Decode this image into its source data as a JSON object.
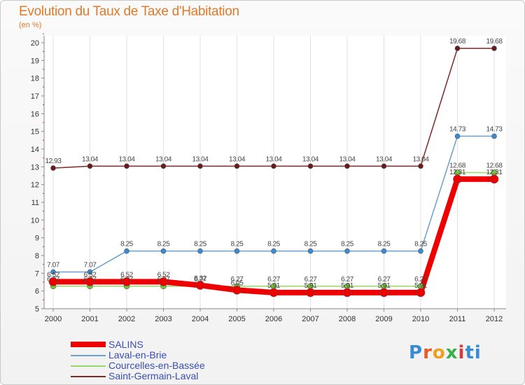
{
  "header": {
    "title": "Evolution du Taux de Taxe d'Habitation",
    "unit": "(en %)"
  },
  "logo": {
    "text": "Proxiti",
    "letters": [
      "P",
      "r",
      "o",
      "x",
      "i",
      "ti"
    ]
  },
  "chart_data": {
    "type": "line",
    "title": "Evolution du Taux de Taxe d'Habitation",
    "ylabel": "(en %)",
    "xlabel": "",
    "ylim": [
      5,
      20
    ],
    "yticks": [
      5,
      6,
      7,
      8,
      9,
      10,
      11,
      12,
      13,
      14,
      15,
      16,
      17,
      18,
      19,
      20
    ],
    "categories": [
      "2000",
      "2001",
      "2002",
      "2003",
      "2004",
      "2005",
      "2006",
      "2007",
      "2008",
      "2009",
      "2010",
      "2011",
      "2012"
    ],
    "grid": "vertical",
    "legend_position": "bottom-left",
    "series": [
      {
        "name": "Saint-Germain-Laval",
        "color": "#7a2a2a",
        "values": [
          12.93,
          13.04,
          13.04,
          13.04,
          13.04,
          13.04,
          13.04,
          13.04,
          13.04,
          13.04,
          13.04,
          19.68,
          19.68
        ],
        "labels": [
          "12.93",
          "13.04",
          "13.04",
          "13.04",
          "13.04",
          "13.04",
          "13.04",
          "13.04",
          "13.04",
          "13.04",
          "13.04",
          "19.68",
          "19.68"
        ]
      },
      {
        "name": "Laval-en-Brie",
        "color": "#6aa0cc",
        "values": [
          7.07,
          7.07,
          8.25,
          8.25,
          8.25,
          8.25,
          8.25,
          8.25,
          8.25,
          8.25,
          8.25,
          14.73,
          14.73
        ],
        "labels": [
          "7.07",
          "7.07",
          "8.25",
          "8.25",
          "8.25",
          "8.25",
          "8.25",
          "8.25",
          "8.25",
          "8.25",
          "8.25",
          "14.73",
          "14.73"
        ]
      },
      {
        "name": "Courcelles-en-Bassée",
        "color": "#98d868",
        "values": [
          6.27,
          6.27,
          6.27,
          6.27,
          6.27,
          6.27,
          6.27,
          6.27,
          6.27,
          6.27,
          6.27,
          12.68,
          12.68
        ],
        "labels": [
          "6.27",
          "6.27",
          "6.27",
          "6.27",
          "6.27",
          "6.27",
          "6.27",
          "6.27",
          "6.27",
          "6.27",
          "6.27",
          "12.68",
          "12.68"
        ]
      },
      {
        "name": "SALINS",
        "color": "#ee0000",
        "values": [
          6.52,
          6.52,
          6.52,
          6.52,
          6.32,
          6.05,
          5.91,
          5.91,
          5.91,
          5.91,
          5.91,
          12.31,
          12.31
        ],
        "labels": [
          "6.52",
          "6.52",
          "6.52",
          "6.52",
          "6.32",
          "6.05",
          "5.91",
          "5.91",
          "5.91",
          "5.91",
          "5.91",
          "12.31",
          "12.31"
        ]
      }
    ],
    "legend": [
      "SALINS",
      "Laval-en-Brie",
      "Courcelles-en-Bassée",
      "Saint-Germain-Laval"
    ]
  }
}
